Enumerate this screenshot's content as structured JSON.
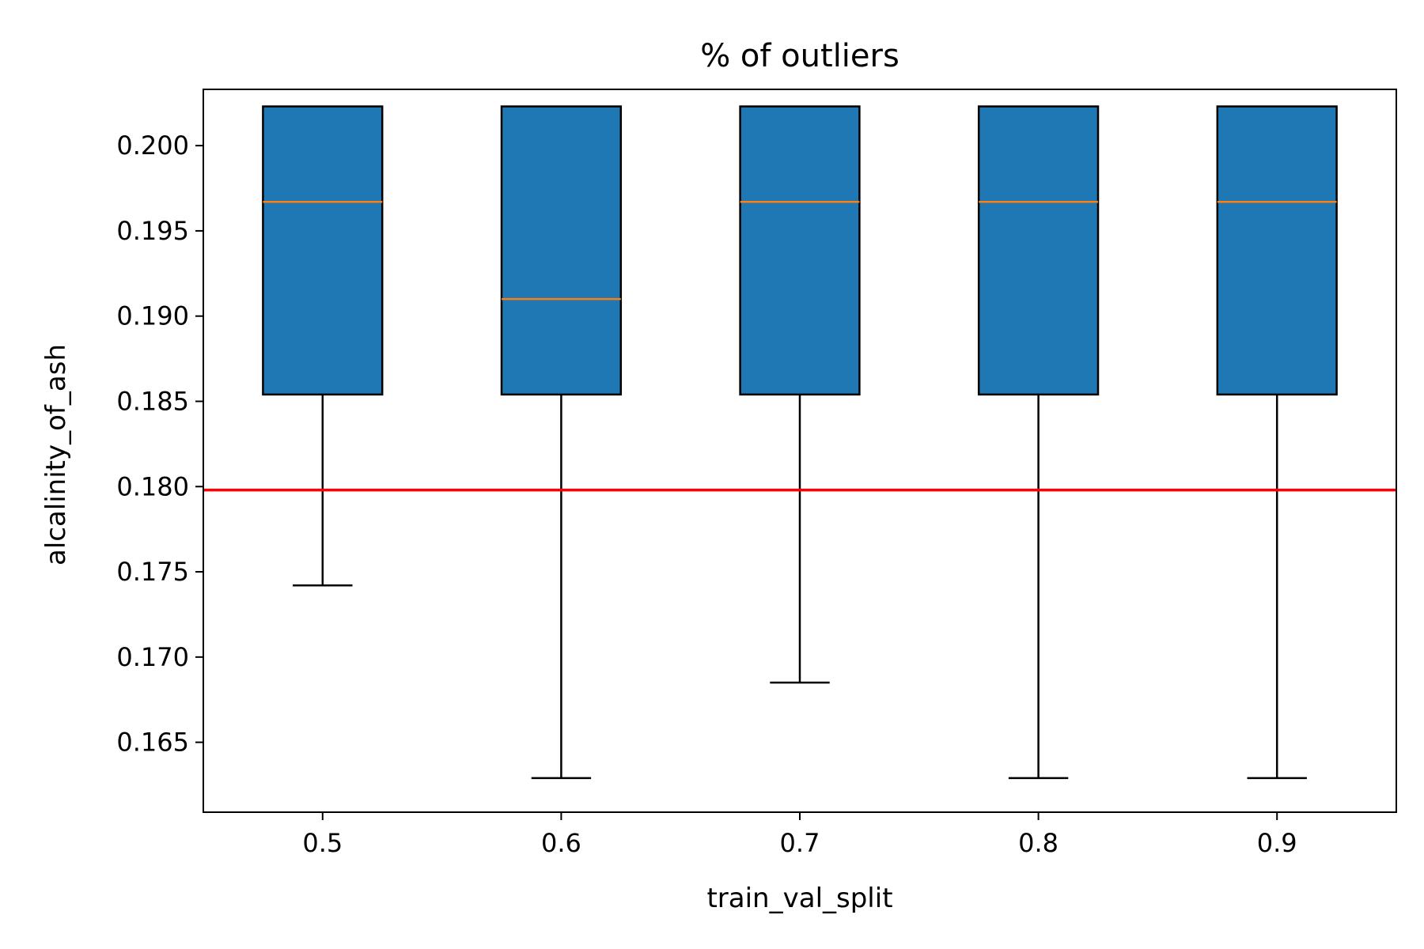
{
  "chart_data": {
    "type": "box",
    "title": "% of outliers",
    "xlabel": "train_val_split",
    "ylabel": "alcalinity_of_ash",
    "ylim": [
      0.1609,
      0.2033
    ],
    "yticks": [
      "0.165",
      "0.170",
      "0.175",
      "0.180",
      "0.185",
      "0.190",
      "0.195",
      "0.200"
    ],
    "categories": [
      "0.5",
      "0.6",
      "0.7",
      "0.8",
      "0.9"
    ],
    "boxes": [
      {
        "category": "0.5",
        "whisker_low": 0.1742,
        "q1": 0.1854,
        "median": 0.1967,
        "q3": 0.2023,
        "whisker_high": 0.2023
      },
      {
        "category": "0.6",
        "whisker_low": 0.1629,
        "q1": 0.1854,
        "median": 0.191,
        "q3": 0.2023,
        "whisker_high": 0.2023
      },
      {
        "category": "0.7",
        "whisker_low": 0.1685,
        "q1": 0.1854,
        "median": 0.1967,
        "q3": 0.2023,
        "whisker_high": 0.2023
      },
      {
        "category": "0.8",
        "whisker_low": 0.1629,
        "q1": 0.1854,
        "median": 0.1967,
        "q3": 0.2023,
        "whisker_high": 0.2023
      },
      {
        "category": "0.9",
        "whisker_low": 0.1629,
        "q1": 0.1854,
        "median": 0.1967,
        "q3": 0.2023,
        "whisker_high": 0.2023
      }
    ],
    "reference_line": {
      "y": 0.1798,
      "color": "#ff0000"
    },
    "colors": {
      "box_fill": "#1f77b4",
      "median": "#ff7f0e",
      "edge": "#000000"
    },
    "grid": false,
    "legend": "none"
  }
}
